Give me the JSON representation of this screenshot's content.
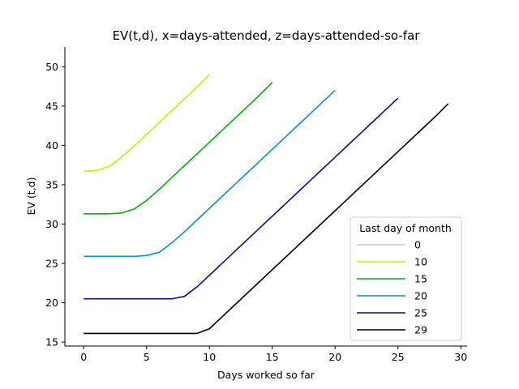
{
  "chart_data": {
    "type": "line",
    "title": "EV(t,d), x=days-attended, z=days-attended-so-far",
    "xlabel": "Days worked so far",
    "ylabel": "EV (t,d)",
    "xlim": [
      -1.5,
      30.5
    ],
    "ylim": [
      14.5,
      52.5
    ],
    "xticks": [
      0,
      5,
      10,
      15,
      20,
      25,
      30
    ],
    "yticks": [
      15,
      20,
      25,
      30,
      35,
      40,
      45,
      50
    ],
    "grid": false,
    "legend": {
      "title": "Last day of month",
      "placement": "lower-right"
    },
    "series": [
      {
        "name": "0",
        "color": "#c8c8c8",
        "x": [
          0
        ],
        "y": [
          null
        ]
      },
      {
        "name": "10",
        "color": "#c8f000",
        "x": [
          0,
          1,
          2,
          3,
          4,
          5,
          6,
          7,
          8,
          9,
          10
        ],
        "y": [
          36.7,
          36.8,
          37.3,
          38.5,
          39.9,
          41.4,
          42.9,
          44.4,
          45.9,
          47.4,
          49.0
        ]
      },
      {
        "name": "15",
        "color": "#00b400",
        "x": [
          0,
          1,
          2,
          3,
          4,
          5,
          6,
          7,
          8,
          9,
          10,
          11,
          12,
          13,
          14,
          15
        ],
        "y": [
          31.3,
          31.3,
          31.3,
          31.4,
          31.9,
          33.0,
          34.4,
          35.9,
          37.4,
          38.9,
          40.4,
          41.9,
          43.4,
          44.9,
          46.4,
          48.0
        ]
      },
      {
        "name": "20",
        "color": "#0096c8",
        "x": [
          0,
          1,
          2,
          3,
          4,
          5,
          6,
          7,
          8,
          9,
          10,
          11,
          12,
          13,
          14,
          15,
          16,
          17,
          18,
          19,
          20
        ],
        "y": [
          25.9,
          25.9,
          25.9,
          25.9,
          25.9,
          26.0,
          26.4,
          27.6,
          29.0,
          30.5,
          32.0,
          33.5,
          35.0,
          36.5,
          38.0,
          39.5,
          41.0,
          42.5,
          44.0,
          45.5,
          47.0
        ]
      },
      {
        "name": "25",
        "color": "#1e0096",
        "x": [
          0,
          1,
          2,
          3,
          4,
          5,
          6,
          7,
          8,
          9,
          10,
          11,
          12,
          13,
          14,
          15,
          16,
          17,
          18,
          19,
          20,
          21,
          22,
          23,
          24,
          25
        ],
        "y": [
          20.5,
          20.5,
          20.5,
          20.5,
          20.5,
          20.5,
          20.5,
          20.5,
          20.8,
          22.0,
          23.5,
          25.0,
          26.5,
          28.0,
          29.5,
          31.0,
          32.5,
          34.0,
          35.5,
          37.0,
          38.5,
          40.0,
          41.5,
          43.0,
          44.5,
          46.0
        ]
      },
      {
        "name": "29",
        "color": "#000000",
        "x": [
          0,
          1,
          2,
          3,
          4,
          5,
          6,
          7,
          8,
          9,
          10,
          11,
          12,
          13,
          14,
          15,
          16,
          17,
          18,
          19,
          20,
          21,
          22,
          23,
          24,
          25,
          26,
          27,
          28,
          29
        ],
        "y": [
          16.1,
          16.1,
          16.1,
          16.1,
          16.1,
          16.1,
          16.1,
          16.1,
          16.1,
          16.1,
          16.7,
          18.2,
          19.7,
          21.2,
          22.7,
          24.2,
          25.7,
          27.2,
          28.7,
          30.2,
          31.7,
          33.2,
          34.7,
          36.2,
          37.7,
          39.2,
          40.7,
          42.2,
          43.7,
          45.3
        ]
      }
    ]
  }
}
